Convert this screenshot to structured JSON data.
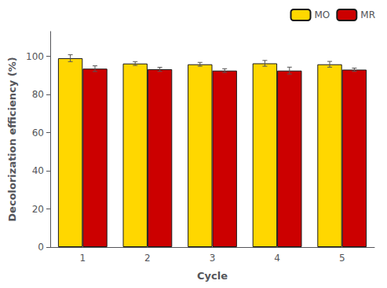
{
  "chart_data": {
    "type": "bar",
    "categories": [
      "1",
      "2",
      "3",
      "4",
      "5"
    ],
    "series": [
      {
        "name": "MO",
        "color": "#FFD700",
        "values": [
          99.0,
          96.2,
          95.8,
          96.3,
          95.8
        ],
        "errors": [
          1.8,
          1.0,
          1.0,
          1.5,
          1.5
        ]
      },
      {
        "name": "MR",
        "color": "#CC0000",
        "values": [
          93.5,
          93.2,
          92.5,
          92.5,
          93.0
        ],
        "errors": [
          1.5,
          1.0,
          1.0,
          1.8,
          0.8
        ]
      }
    ],
    "xlabel": "Cycle",
    "ylabel": "Decolorization efficiency (%)",
    "ylim": [
      0,
      113
    ],
    "yticks": [
      0,
      20,
      40,
      60,
      80,
      100
    ],
    "legend": "upper right",
    "grid": false
  }
}
